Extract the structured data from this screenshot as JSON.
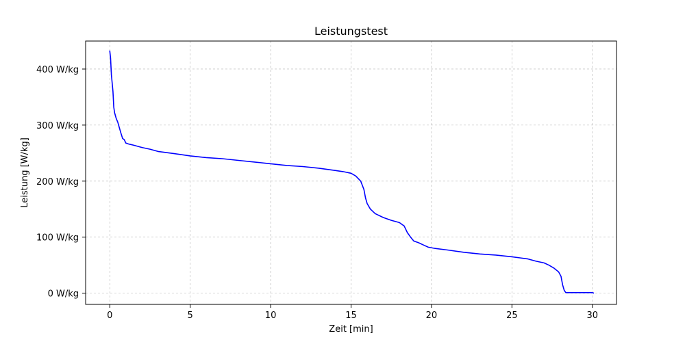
{
  "chart_data": {
    "type": "line",
    "title": "Leistungstest",
    "xlabel": "Zeit [min]",
    "ylabel": "Leistung [W/kg]",
    "xlim": [
      -1.5,
      31.5
    ],
    "ylim": [
      -20,
      450
    ],
    "grid": true,
    "x_ticks": [
      0,
      5,
      10,
      15,
      20,
      25,
      30
    ],
    "x_tick_labels": [
      "0",
      "5",
      "10",
      "15",
      "20",
      "25",
      "30"
    ],
    "y_ticks": [
      0,
      100,
      200,
      300,
      400
    ],
    "y_tick_labels": [
      "0 W/kg",
      "100 W/kg",
      "200 W/kg",
      "300 W/kg",
      "400 W/kg"
    ],
    "series": [
      {
        "color": "#0000ff",
        "x": [
          0.0,
          0.05,
          0.1,
          0.2,
          0.25,
          0.3,
          0.4,
          0.5,
          0.6,
          0.7,
          0.8,
          0.9,
          1.0,
          1.2,
          1.5,
          2.0,
          2.5,
          3.0,
          4.0,
          5.0,
          6.0,
          7.0,
          8.0,
          9.0,
          10.0,
          11.0,
          12.0,
          13.0,
          14.0,
          14.5,
          15.0,
          15.3,
          15.6,
          15.8,
          15.9,
          16.0,
          16.2,
          16.5,
          17.0,
          17.5,
          18.0,
          18.3,
          18.5,
          18.7,
          18.9,
          19.2,
          19.5,
          19.8,
          20.2,
          21.0,
          22.0,
          23.0,
          24.0,
          25.0,
          25.5,
          26.0,
          26.5,
          27.0,
          27.3,
          27.6,
          27.9,
          28.05,
          28.15,
          28.25,
          28.35,
          29.0,
          30.0,
          30.1
        ],
        "y": [
          433,
          420,
          390,
          360,
          332,
          322,
          312,
          305,
          295,
          285,
          276,
          274,
          268,
          266,
          264,
          260,
          257,
          253,
          249,
          245,
          242,
          240,
          237,
          234,
          231,
          228,
          226,
          223,
          219,
          217,
          214,
          209,
          200,
          185,
          170,
          160,
          150,
          142,
          135,
          130,
          126,
          120,
          108,
          100,
          93,
          90,
          86,
          82,
          80,
          77,
          73,
          70,
          68,
          65,
          63,
          61,
          57,
          54,
          50,
          45,
          38,
          30,
          15,
          5,
          1,
          1,
          1,
          0
        ]
      }
    ]
  }
}
